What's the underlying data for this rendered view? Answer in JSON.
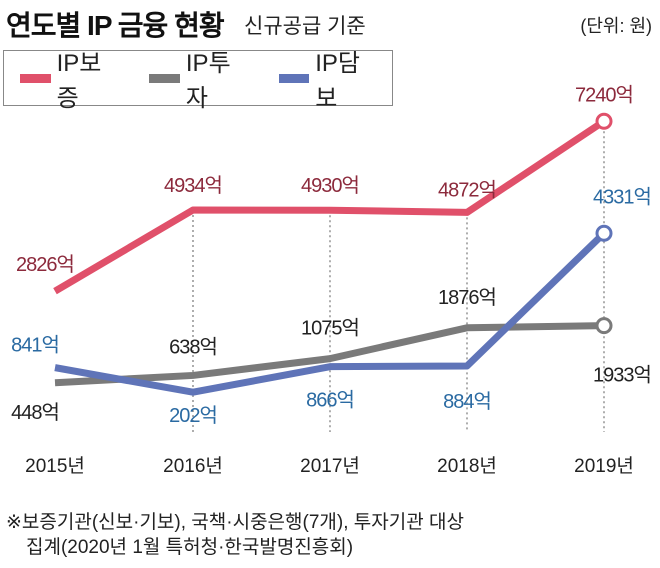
{
  "header": {
    "title": "연도별 IP 금융 현황",
    "subtitle": "신규공급 기준",
    "unit": "(단위: 원)"
  },
  "colors": {
    "guarantee": "#e0506a",
    "investment": "#7a7a7a",
    "collateral": "#5f74b8",
    "guarantee_label": "#8c2a3c",
    "investment_label": "#222222",
    "collateral_label": "#2a6aa2"
  },
  "chart_data": {
    "type": "line",
    "title": "연도별 IP 금융 현황",
    "subtitle": "신규공급 기준",
    "unit": "(단위: 원)",
    "categories": [
      "2015년",
      "2016년",
      "2017년",
      "2018년",
      "2019년"
    ],
    "series": [
      {
        "name": "IP보증",
        "values": [
          2826,
          4934,
          4930,
          4872,
          7240
        ],
        "labels": [
          "2826억",
          "4934억",
          "4930억",
          "4872억",
          "7240억"
        ]
      },
      {
        "name": "IP투자",
        "values": [
          448,
          638,
          1075,
          1876,
          1933
        ],
        "labels": [
          "448억",
          "638억",
          "1075억",
          "1876억",
          "1933억"
        ]
      },
      {
        "name": "IP담보",
        "values": [
          841,
          202,
          866,
          884,
          4331
        ],
        "labels": [
          "841억",
          "202억",
          "866억",
          "884억",
          "4331억"
        ]
      }
    ],
    "legend": "top-left",
    "grid": "vertical dotted"
  },
  "note": {
    "line1": "※보증기관(신보·기보), 국책·시중은행(7개), 투자기관 대상",
    "line2": "집계(2020년 1월 특허청·한국발명진흥회)"
  }
}
